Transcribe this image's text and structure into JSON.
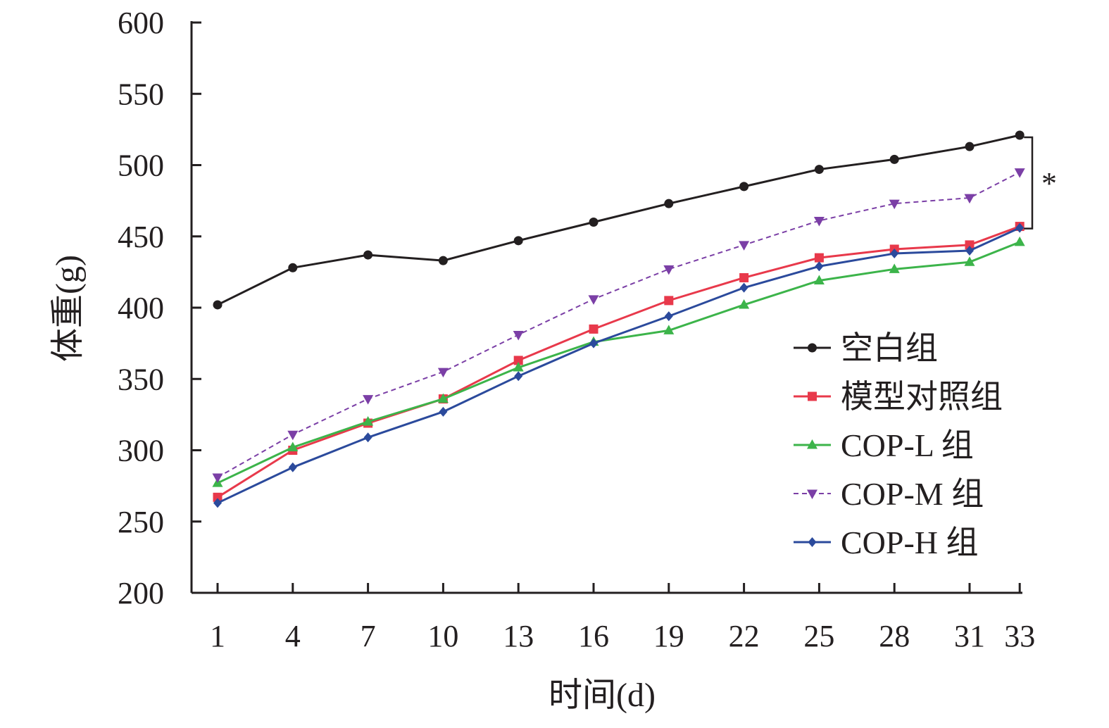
{
  "chart_data": {
    "type": "line",
    "x": [
      1,
      4,
      7,
      10,
      13,
      16,
      19,
      22,
      25,
      28,
      31,
      33
    ],
    "x_tick_labels": [
      "1",
      "4",
      "7",
      "10",
      "13",
      "16",
      "19",
      "22",
      "25",
      "28",
      "31",
      "33"
    ],
    "y_ticks": [
      200,
      250,
      300,
      350,
      400,
      450,
      500,
      550,
      600
    ],
    "y_tick_labels": [
      "200",
      "250",
      "300",
      "350",
      "400",
      "450",
      "500",
      "550",
      "600"
    ],
    "ylim": [
      200,
      600
    ],
    "xlabel": "时间(d)",
    "ylabel": "体重(g)",
    "grid": false,
    "legend_position": "right",
    "annotation": "*",
    "series": [
      {
        "name": "空白组",
        "color": "#231f20",
        "marker": "circle",
        "dash": "solid",
        "values": [
          402,
          428,
          437,
          433,
          447,
          460,
          473,
          485,
          497,
          504,
          513,
          521
        ]
      },
      {
        "name": "模型对照组",
        "color": "#e8394b",
        "marker": "square",
        "dash": "solid",
        "values": [
          267,
          300,
          319,
          336,
          363,
          385,
          405,
          421,
          435,
          441,
          444,
          457
        ]
      },
      {
        "name": "COP-L 组",
        "color": "#3cb44a",
        "marker": "triangle-up",
        "dash": "solid",
        "values": [
          277,
          302,
          320,
          336,
          358,
          376,
          384,
          402,
          419,
          427,
          432,
          446
        ]
      },
      {
        "name": "COP-M 组",
        "color": "#7b3fa6",
        "marker": "triangle-down",
        "dash": "dashed",
        "values": [
          281,
          311,
          336,
          355,
          381,
          406,
          427,
          444,
          461,
          473,
          477,
          495
        ]
      },
      {
        "name": "COP-H 组",
        "color": "#2b4a9c",
        "marker": "diamond",
        "dash": "solid",
        "values": [
          263,
          288,
          309,
          327,
          352,
          375,
          394,
          414,
          429,
          438,
          440,
          456
        ]
      }
    ]
  }
}
